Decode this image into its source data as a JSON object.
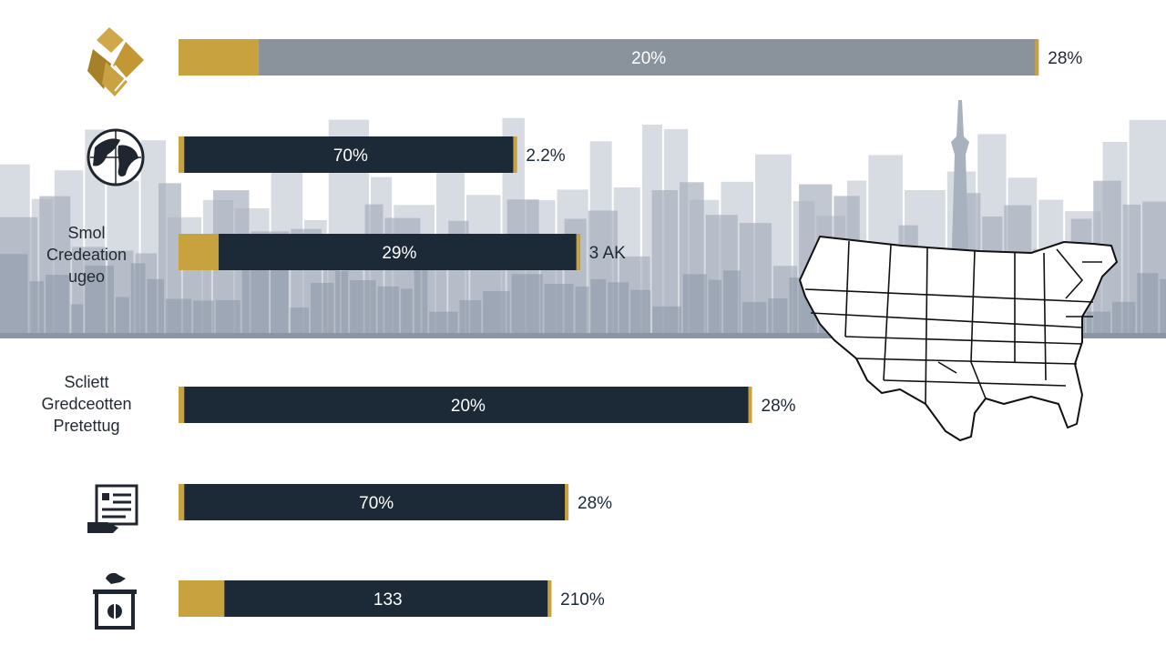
{
  "colors": {
    "navy": "#1c2937",
    "gold": "#c7a23e",
    "slate": "#8a929c",
    "text_dark": "#1c2937",
    "text_light": "#ffffff",
    "skyline_far": "#c9cfd8",
    "skyline_mid": "#a8b1be",
    "skyline_near": "#8a95a5"
  },
  "icons": {
    "row1": "gem-icon",
    "row2": "globe-icon",
    "row5": "document-hand-icon",
    "row6": "ballot-box-icon",
    "map": "us-map-icon"
  },
  "chart_data": {
    "type": "bar",
    "orientation": "horizontal",
    "title": "",
    "xlabel": "",
    "ylabel": "",
    "grid": false,
    "legend": "none",
    "categories": [
      "",
      "",
      "Smol\nCredeation\nugeo",
      "Scliett\nGredceotten\nPretettug",
      "",
      ""
    ],
    "bars": [
      {
        "length_pct": 75,
        "gold_pct": 7,
        "fill": "slate",
        "inner_label": "20%",
        "end_label": "28%"
      },
      {
        "length_pct": 29.5,
        "gold_pct": 0.5,
        "fill": "navy",
        "inner_label": "70%",
        "end_label": "2.2%"
      },
      {
        "length_pct": 35,
        "gold_pct": 3.5,
        "fill": "navy",
        "inner_label": "29%",
        "end_label": "3 AK"
      },
      {
        "length_pct": 50,
        "gold_pct": 0.5,
        "fill": "navy",
        "inner_label": "20%",
        "end_label": "28%"
      },
      {
        "length_pct": 34,
        "gold_pct": 0.5,
        "fill": "navy",
        "inner_label": "70%",
        "end_label": "28%"
      },
      {
        "length_pct": 32.5,
        "gold_pct": 4,
        "fill": "navy",
        "inner_label": "133",
        "end_label": "210%"
      }
    ]
  }
}
